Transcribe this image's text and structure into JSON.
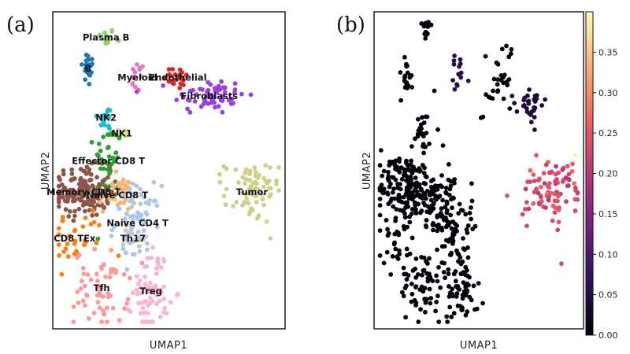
{
  "chart_data": [
    {
      "type": "scatter",
      "panel": "(a)",
      "xlabel": "UMAP1",
      "ylabel": "UMAP2",
      "clusters": [
        {
          "name": "Plasma B",
          "color": "#8fd16a",
          "center": [
            0.22,
            0.93
          ],
          "spread": [
            0.02,
            0.015
          ],
          "n": 14
        },
        {
          "name": "B",
          "color": "#1f77b4",
          "center": [
            0.14,
            0.83
          ],
          "spread": [
            0.015,
            0.03
          ],
          "n": 22
        },
        {
          "name": "Myeloid",
          "color": "#e377c2",
          "center": [
            0.36,
            0.8
          ],
          "spread": [
            0.015,
            0.025
          ],
          "n": 14
        },
        {
          "name": "Endothelial",
          "color": "#d62728",
          "center": [
            0.54,
            0.8
          ],
          "spread": [
            0.03,
            0.02
          ],
          "n": 22
        },
        {
          "name": "Fibroblasts",
          "color": "#9b3fe0",
          "center": [
            0.68,
            0.74
          ],
          "spread": [
            0.08,
            0.03
          ],
          "n": 60
        },
        {
          "name": "NK2",
          "color": "#17becf",
          "center": [
            0.22,
            0.67
          ],
          "spread": [
            0.02,
            0.02
          ],
          "n": 18
        },
        {
          "name": "NK1",
          "color": "#dbdb8d",
          "center": [
            0.29,
            0.62
          ],
          "spread": [
            0.02,
            0.012
          ],
          "n": 10
        },
        {
          "name": "Effector CD8 T",
          "color": "#2ca02c",
          "center": [
            0.23,
            0.53
          ],
          "spread": [
            0.03,
            0.06
          ],
          "n": 40
        },
        {
          "name": "Memory CD8 T",
          "color": "#8c564b",
          "center": [
            0.12,
            0.43
          ],
          "spread": [
            0.06,
            0.04
          ],
          "n": 160
        },
        {
          "name": "Naive CD8 T",
          "color": "#f7b66b",
          "center": [
            0.27,
            0.42
          ],
          "spread": [
            0.04,
            0.03
          ],
          "n": 35
        },
        {
          "name": "CD8 TEx",
          "color": "#ff7f0e",
          "center": [
            0.08,
            0.28
          ],
          "spread": [
            0.07,
            0.05
          ],
          "n": 30
        },
        {
          "name": "Naive CD4 T",
          "color": "#aec7e8",
          "center": [
            0.36,
            0.33
          ],
          "spread": [
            0.05,
            0.06
          ],
          "n": 70
        },
        {
          "name": "Th17",
          "color": "#c7c7c7",
          "center": [
            0.34,
            0.28
          ],
          "spread": [
            0.03,
            0.03
          ],
          "n": 15
        },
        {
          "name": "Tfh",
          "color": "#ff9896",
          "center": [
            0.2,
            0.12
          ],
          "spread": [
            0.06,
            0.06
          ],
          "n": 60
        },
        {
          "name": "Treg",
          "color": "#f7b6d2",
          "center": [
            0.42,
            0.11
          ],
          "spread": [
            0.04,
            0.07
          ],
          "n": 70
        },
        {
          "name": "Tumor",
          "color": "#cfcf8a",
          "center": [
            0.87,
            0.43
          ],
          "spread": [
            0.06,
            0.05
          ],
          "n": 70
        }
      ]
    },
    {
      "type": "scatter",
      "panel": "(b)",
      "xlabel": "UMAP1",
      "ylabel": "UMAP2",
      "colorbar": {
        "min": 0.0,
        "max": 0.4,
        "ticks": [
          "0.00",
          "0.05",
          "0.10",
          "0.15",
          "0.20",
          "0.25",
          "0.30",
          "0.35"
        ],
        "colormap": [
          "#000004",
          "#2c115f",
          "#721f81",
          "#b73779",
          "#f1605d",
          "#feb078",
          "#fcfdbf"
        ]
      },
      "groups": [
        {
          "center": [
            0.24,
            0.96
          ],
          "spread": [
            0.015,
            0.02
          ],
          "n": 14,
          "value": 0.0
        },
        {
          "center": [
            0.14,
            0.8
          ],
          "spread": [
            0.015,
            0.035
          ],
          "n": 20,
          "value": 0.0
        },
        {
          "center": [
            0.4,
            0.81
          ],
          "spread": [
            0.02,
            0.03
          ],
          "n": 14,
          "value": 0.05
        },
        {
          "center": [
            0.59,
            0.78
          ],
          "spread": [
            0.05,
            0.05
          ],
          "n": 30,
          "value": 0.0
        },
        {
          "center": [
            0.74,
            0.71
          ],
          "spread": [
            0.04,
            0.03
          ],
          "n": 30,
          "value": 0.04
        },
        {
          "center": [
            0.23,
            0.62
          ],
          "spread": [
            0.03,
            0.04
          ],
          "n": 26,
          "value": 0.0
        },
        {
          "center": [
            0.14,
            0.45
          ],
          "spread": [
            0.07,
            0.05
          ],
          "n": 170,
          "value": 0.0
        },
        {
          "center": [
            0.28,
            0.42
          ],
          "spread": [
            0.05,
            0.05
          ],
          "n": 60,
          "value": 0.0
        },
        {
          "center": [
            0.1,
            0.28
          ],
          "spread": [
            0.06,
            0.05
          ],
          "n": 30,
          "value": 0.0
        },
        {
          "center": [
            0.37,
            0.32
          ],
          "spread": [
            0.05,
            0.06
          ],
          "n": 70,
          "value": 0.0
        },
        {
          "center": [
            0.22,
            0.13
          ],
          "spread": [
            0.06,
            0.06
          ],
          "n": 60,
          "value": 0.0
        },
        {
          "center": [
            0.42,
            0.13
          ],
          "spread": [
            0.04,
            0.07
          ],
          "n": 70,
          "value": 0.0
        },
        {
          "center": [
            0.85,
            0.43
          ],
          "spread": [
            0.07,
            0.05
          ],
          "n": 80,
          "value": 0.24
        },
        {
          "center": [
            0.93,
            0.47
          ],
          "spread": [
            0.02,
            0.04
          ],
          "n": 10,
          "value": 0.22
        },
        {
          "center": [
            0.91,
            0.2
          ],
          "spread": [
            0.003,
            0.003
          ],
          "n": 1,
          "value": 0.22
        },
        {
          "center": [
            0.98,
            0.55
          ],
          "spread": [
            0.003,
            0.003
          ],
          "n": 1,
          "value": 0.38
        }
      ]
    }
  ]
}
